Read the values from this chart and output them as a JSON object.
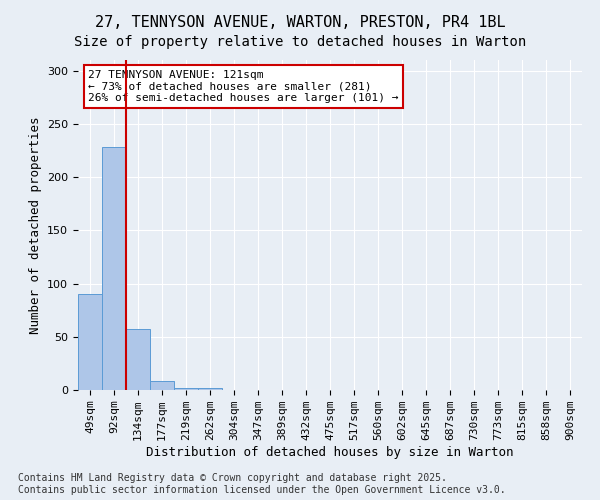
{
  "title_line1": "27, TENNYSON AVENUE, WARTON, PRESTON, PR4 1BL",
  "title_line2": "Size of property relative to detached houses in Warton",
  "xlabel": "Distribution of detached houses by size in Warton",
  "ylabel": "Number of detached properties",
  "bin_labels": [
    "49sqm",
    "92sqm",
    "134sqm",
    "177sqm",
    "219sqm",
    "262sqm",
    "304sqm",
    "347sqm",
    "389sqm",
    "432sqm",
    "475sqm",
    "517sqm",
    "560sqm",
    "602sqm",
    "645sqm",
    "687sqm",
    "730sqm",
    "773sqm",
    "815sqm",
    "858sqm",
    "900sqm"
  ],
  "bar_values": [
    90,
    228,
    57,
    8,
    2,
    2,
    0,
    0,
    0,
    0,
    0,
    0,
    0,
    0,
    0,
    0,
    0,
    0,
    0,
    0,
    0
  ],
  "bar_color": "#aec6e8",
  "bar_edge_color": "#5b9bd5",
  "property_bin_index": 2,
  "annotation_text": "27 TENNYSON AVENUE: 121sqm\n← 73% of detached houses are smaller (281)\n26% of semi-detached houses are larger (101) →",
  "annotation_box_color": "#ffffff",
  "annotation_box_edge_color": "#cc0000",
  "red_line_color": "#cc0000",
  "ylim": [
    0,
    310
  ],
  "yticks": [
    0,
    50,
    100,
    150,
    200,
    250,
    300
  ],
  "background_color": "#e8eef5",
  "footer_text": "Contains HM Land Registry data © Crown copyright and database right 2025.\nContains public sector information licensed under the Open Government Licence v3.0.",
  "grid_color": "#ffffff",
  "title_fontsize": 11,
  "subtitle_fontsize": 10,
  "axis_label_fontsize": 9,
  "tick_fontsize": 8,
  "annotation_fontsize": 8,
  "footer_fontsize": 7
}
